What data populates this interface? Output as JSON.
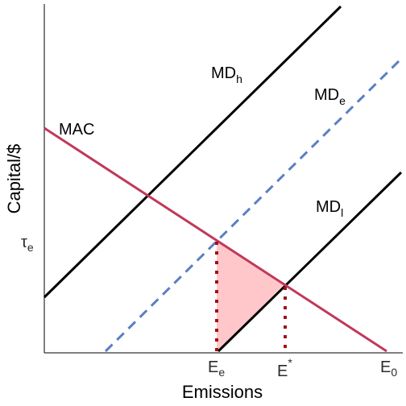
{
  "chart_data": {
    "type": "line",
    "xlabel": "Emissions",
    "ylabel": "Capital/$",
    "x_ticks": [
      {
        "base": "E",
        "sub": "e",
        "sup": ""
      },
      {
        "base": "E",
        "sub": "",
        "sup": "*"
      },
      {
        "base": "E",
        "sub": "0",
        "sup": ""
      }
    ],
    "y_ticks": [
      {
        "base": "τ",
        "sub": "e",
        "sup": ""
      }
    ],
    "series": [
      {
        "name": "MAC",
        "label_base": "MAC",
        "label_sub": "",
        "color": "#c0395a",
        "style": "solid"
      },
      {
        "name": "MD_h",
        "label_base": "MD",
        "label_sub": "h",
        "color": "#000000",
        "style": "solid"
      },
      {
        "name": "MD_e",
        "label_base": "MD",
        "label_sub": "e",
        "color": "#5b7fc4",
        "style": "dashed"
      },
      {
        "name": "MD_l",
        "label_base": "MD",
        "label_sub": "l",
        "color": "#000000",
        "style": "solid"
      }
    ],
    "shaded_region": {
      "description": "",
      "color": "#ffc7c9"
    },
    "guide_lines_color": "#a01218",
    "grid": false
  }
}
